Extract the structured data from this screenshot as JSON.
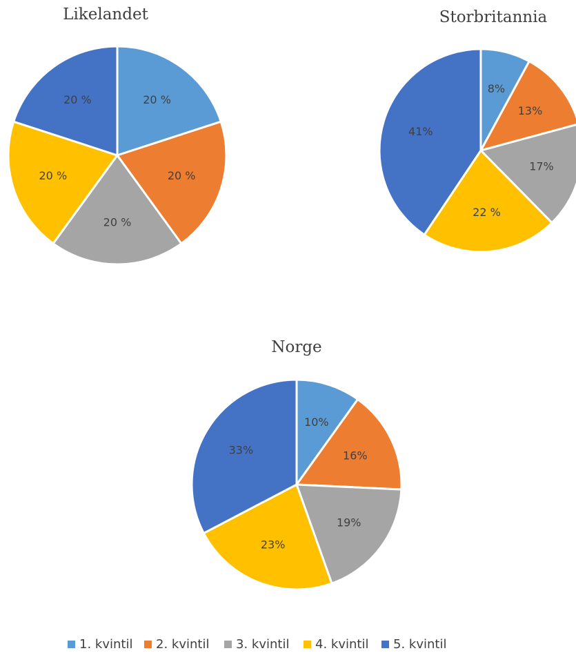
{
  "chart_data": [
    {
      "type": "pie",
      "title": "Likelandet",
      "values": [
        20,
        20,
        20,
        20,
        20
      ],
      "value_labels": [
        "20 %",
        "20 %",
        "20 %",
        "20 %",
        "20 %"
      ]
    },
    {
      "type": "pie",
      "title": "Storbritannia",
      "values": [
        8,
        13,
        17,
        22,
        41
      ],
      "value_labels": [
        "8%",
        "13%",
        "17%",
        "22 %",
        "41%"
      ]
    },
    {
      "type": "pie",
      "title": "Norge",
      "values": [
        10,
        16,
        19,
        23,
        33
      ],
      "value_labels": [
        "10%",
        "16%",
        "19%",
        "23%",
        "33%"
      ]
    }
  ],
  "legend": {
    "labels": [
      "1. kvintil",
      "2. kvintil",
      "3. kvintil",
      "4. kvintil",
      "5. kvintil"
    ],
    "colors": [
      "#5b9bd5",
      "#ed7d31",
      "#a5a5a5",
      "#ffc000",
      "#4472c4"
    ]
  }
}
